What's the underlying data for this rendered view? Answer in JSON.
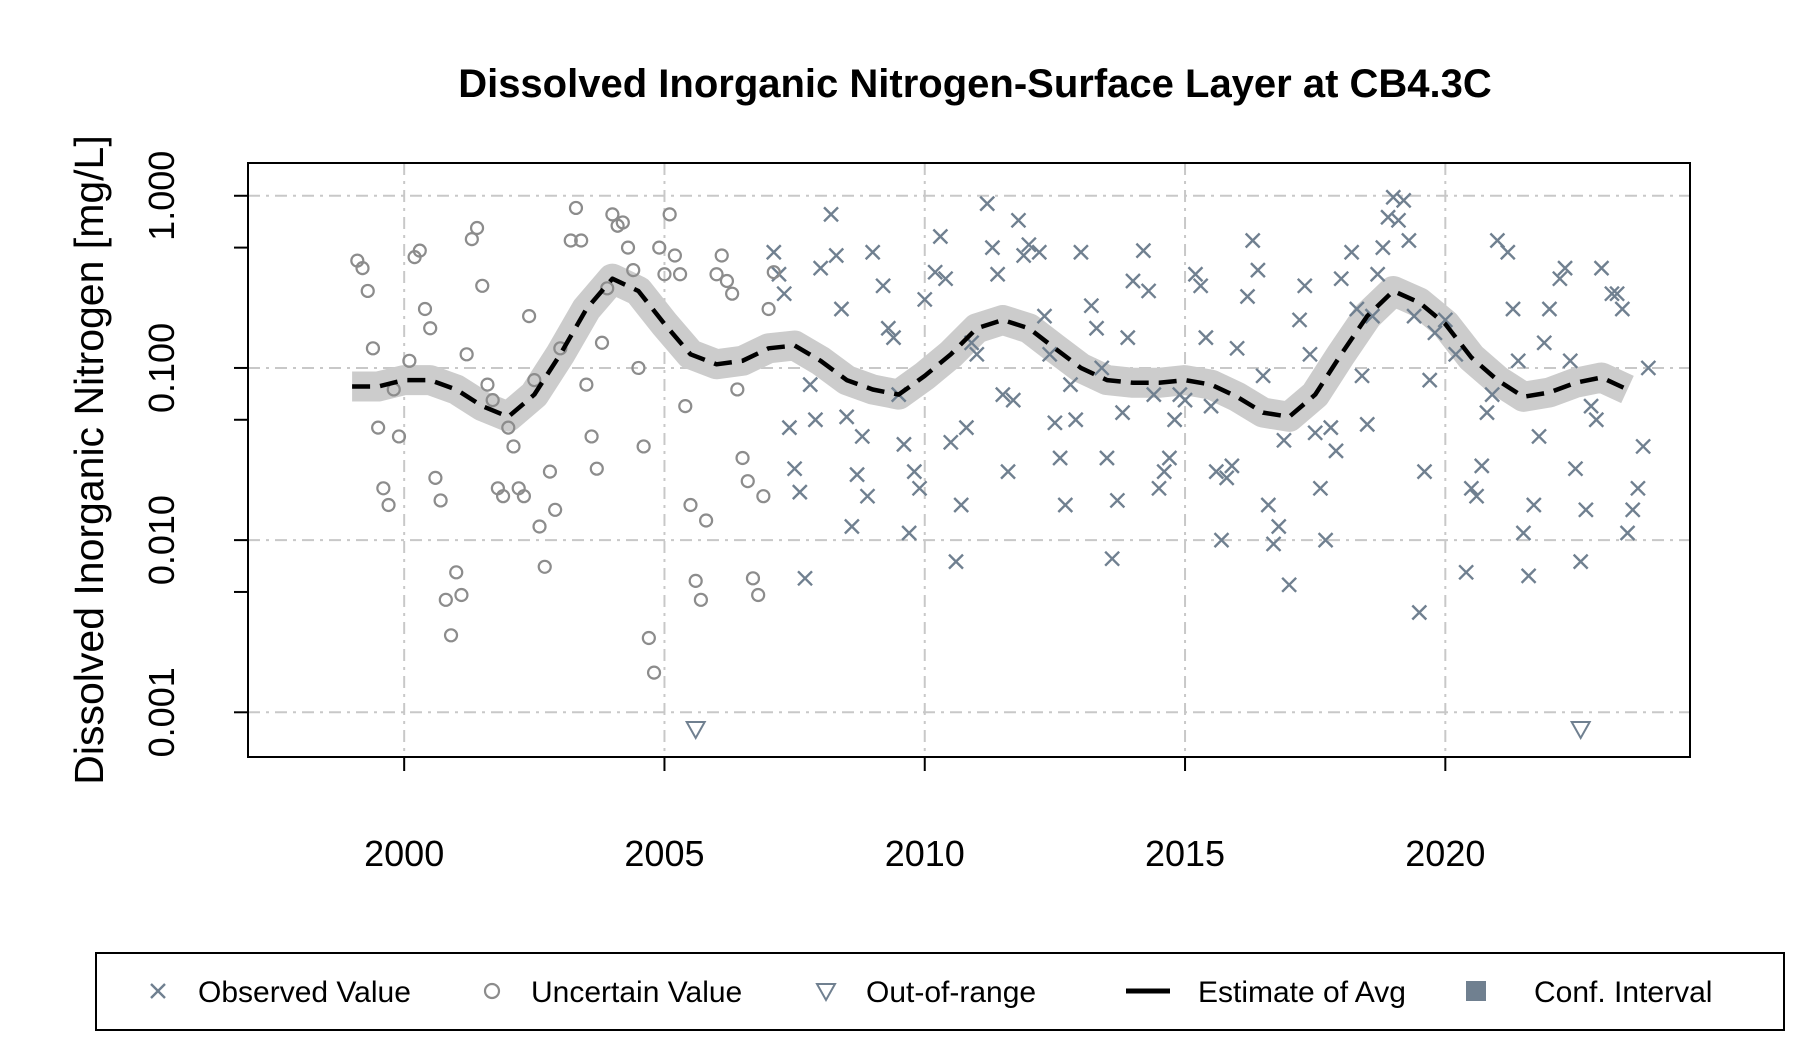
{
  "chart_data": {
    "type": "scatter",
    "title": "Dissolved Inorganic Nitrogen-Surface Layer at CB4.3C",
    "xlabel": "",
    "ylabel": "Dissolved Inorganic Nitrogen [mg/L]",
    "x_range": [
      1997,
      2024.7
    ],
    "y_range": [
      0.00055,
      1.55
    ],
    "y_scale": "log",
    "x_ticks": [
      2000,
      2005,
      2010,
      2015,
      2020
    ],
    "x_tick_labels": [
      "2000",
      "2005",
      "2010",
      "2015",
      "2020"
    ],
    "y_ticks_labeled": [
      0.001,
      0.01,
      0.1,
      1.0
    ],
    "y_tick_labels": [
      "0.001",
      "0.010",
      "0.100",
      "1.000"
    ],
    "y_ticks_minor": [
      0.005,
      0.05,
      0.5
    ],
    "grid": true,
    "legend": {
      "placement": "bottom",
      "items": [
        {
          "label": "Observed Value",
          "symbol": "x",
          "color": "#708090"
        },
        {
          "label": "Uncertain Value",
          "symbol": "circle",
          "color": "#8c8c8c"
        },
        {
          "label": "Out-of-range",
          "symbol": "triangle-down",
          "color": "#708090"
        },
        {
          "label": "Estimate of Avg",
          "symbol": "dashed-line",
          "color": "#000000"
        },
        {
          "label": "Conf. Interval",
          "symbol": "square",
          "color": "#708090"
        }
      ]
    },
    "colors": {
      "observed": "#708090",
      "uncertain": "#8c8c8c",
      "confidence_band": "#cccccc",
      "estimate": "#000000",
      "grid": "#c8c8c8"
    },
    "series": [
      {
        "name": "Estimate of Avg",
        "kind": "line",
        "points": [
          [
            1999.0,
            0.078
          ],
          [
            1999.5,
            0.078
          ],
          [
            2000.0,
            0.085
          ],
          [
            2000.5,
            0.085
          ],
          [
            2001.0,
            0.075
          ],
          [
            2001.5,
            0.06
          ],
          [
            2002.0,
            0.052
          ],
          [
            2002.5,
            0.07
          ],
          [
            2003.0,
            0.12
          ],
          [
            2003.5,
            0.22
          ],
          [
            2004.0,
            0.33
          ],
          [
            2004.5,
            0.28
          ],
          [
            2005.0,
            0.18
          ],
          [
            2005.5,
            0.12
          ],
          [
            2006.0,
            0.105
          ],
          [
            2006.5,
            0.11
          ],
          [
            2007.0,
            0.13
          ],
          [
            2007.5,
            0.135
          ],
          [
            2008.0,
            0.11
          ],
          [
            2008.5,
            0.085
          ],
          [
            2009.0,
            0.075
          ],
          [
            2009.5,
            0.07
          ],
          [
            2010.0,
            0.09
          ],
          [
            2010.5,
            0.12
          ],
          [
            2011.0,
            0.17
          ],
          [
            2011.5,
            0.19
          ],
          [
            2012.0,
            0.17
          ],
          [
            2012.5,
            0.13
          ],
          [
            2013.0,
            0.1
          ],
          [
            2013.5,
            0.085
          ],
          [
            2014.0,
            0.082
          ],
          [
            2014.5,
            0.082
          ],
          [
            2015.0,
            0.085
          ],
          [
            2015.5,
            0.08
          ],
          [
            2016.0,
            0.068
          ],
          [
            2016.5,
            0.055
          ],
          [
            2017.0,
            0.052
          ],
          [
            2017.5,
            0.07
          ],
          [
            2018.0,
            0.12
          ],
          [
            2018.5,
            0.2
          ],
          [
            2019.0,
            0.28
          ],
          [
            2019.5,
            0.24
          ],
          [
            2020.0,
            0.18
          ],
          [
            2020.5,
            0.115
          ],
          [
            2021.0,
            0.085
          ],
          [
            2021.5,
            0.068
          ],
          [
            2022.0,
            0.072
          ],
          [
            2022.5,
            0.082
          ],
          [
            2023.0,
            0.088
          ],
          [
            2023.5,
            0.075
          ]
        ]
      },
      {
        "name": "Observed Value",
        "kind": "x",
        "points": [
          [
            2007.1,
            0.47
          ],
          [
            2007.2,
            0.35
          ],
          [
            2007.3,
            0.27
          ],
          [
            2007.4,
            0.045
          ],
          [
            2007.5,
            0.026
          ],
          [
            2007.6,
            0.019
          ],
          [
            2007.7,
            0.006
          ],
          [
            2007.8,
            0.08
          ],
          [
            2007.9,
            0.05
          ],
          [
            2008.0,
            0.38
          ],
          [
            2008.2,
            0.78
          ],
          [
            2008.3,
            0.45
          ],
          [
            2008.4,
            0.22
          ],
          [
            2008.5,
            0.052
          ],
          [
            2008.6,
            0.012
          ],
          [
            2008.7,
            0.024
          ],
          [
            2008.8,
            0.04
          ],
          [
            2008.9,
            0.018
          ],
          [
            2009.0,
            0.47
          ],
          [
            2009.2,
            0.3
          ],
          [
            2009.3,
            0.17
          ],
          [
            2009.4,
            0.15
          ],
          [
            2009.5,
            0.07
          ],
          [
            2009.6,
            0.036
          ],
          [
            2009.7,
            0.011
          ],
          [
            2009.8,
            0.025
          ],
          [
            2009.9,
            0.02
          ],
          [
            2010.0,
            0.25
          ],
          [
            2010.2,
            0.36
          ],
          [
            2010.3,
            0.58
          ],
          [
            2010.4,
            0.33
          ],
          [
            2010.5,
            0.037
          ],
          [
            2010.6,
            0.0075
          ],
          [
            2010.7,
            0.016
          ],
          [
            2010.8,
            0.045
          ],
          [
            2010.9,
            0.14
          ],
          [
            2011.0,
            0.12
          ],
          [
            2011.2,
            0.9
          ],
          [
            2011.3,
            0.5
          ],
          [
            2011.4,
            0.35
          ],
          [
            2011.5,
            0.07
          ],
          [
            2011.6,
            0.025
          ],
          [
            2011.7,
            0.065
          ],
          [
            2011.8,
            0.72
          ],
          [
            2011.9,
            0.45
          ],
          [
            2012.0,
            0.52
          ],
          [
            2012.2,
            0.47
          ],
          [
            2012.3,
            0.2
          ],
          [
            2012.4,
            0.12
          ],
          [
            2012.5,
            0.048
          ],
          [
            2012.6,
            0.03
          ],
          [
            2012.7,
            0.016
          ],
          [
            2012.8,
            0.08
          ],
          [
            2012.9,
            0.05
          ],
          [
            2013.0,
            0.47
          ],
          [
            2013.2,
            0.23
          ],
          [
            2013.3,
            0.17
          ],
          [
            2013.4,
            0.1
          ],
          [
            2013.5,
            0.03
          ],
          [
            2013.6,
            0.0078
          ],
          [
            2013.7,
            0.017
          ],
          [
            2013.8,
            0.055
          ],
          [
            2013.9,
            0.15
          ],
          [
            2014.0,
            0.32
          ],
          [
            2014.2,
            0.48
          ],
          [
            2014.3,
            0.28
          ],
          [
            2014.4,
            0.07
          ],
          [
            2014.5,
            0.02
          ],
          [
            2014.6,
            0.025
          ],
          [
            2014.7,
            0.03
          ],
          [
            2014.8,
            0.05
          ],
          [
            2014.9,
            0.07
          ],
          [
            2015.0,
            0.065
          ],
          [
            2015.2,
            0.35
          ],
          [
            2015.3,
            0.3
          ],
          [
            2015.4,
            0.15
          ],
          [
            2015.5,
            0.06
          ],
          [
            2015.6,
            0.025
          ],
          [
            2015.7,
            0.01
          ],
          [
            2015.8,
            0.023
          ],
          [
            2015.9,
            0.027
          ],
          [
            2016.0,
            0.13
          ],
          [
            2016.2,
            0.26
          ],
          [
            2016.3,
            0.55
          ],
          [
            2016.4,
            0.37
          ],
          [
            2016.5,
            0.09
          ],
          [
            2016.6,
            0.016
          ],
          [
            2016.7,
            0.0095
          ],
          [
            2016.8,
            0.012
          ],
          [
            2016.9,
            0.038
          ],
          [
            2017.0,
            0.0055
          ],
          [
            2017.2,
            0.19
          ],
          [
            2017.3,
            0.3
          ],
          [
            2017.4,
            0.12
          ],
          [
            2017.5,
            0.042
          ],
          [
            2017.6,
            0.02
          ],
          [
            2017.7,
            0.01
          ],
          [
            2017.8,
            0.045
          ],
          [
            2017.9,
            0.033
          ],
          [
            2018.0,
            0.33
          ],
          [
            2018.2,
            0.47
          ],
          [
            2018.3,
            0.22
          ],
          [
            2018.4,
            0.09
          ],
          [
            2018.5,
            0.047
          ],
          [
            2018.6,
            0.2
          ],
          [
            2018.7,
            0.35
          ],
          [
            2018.8,
            0.5
          ],
          [
            2018.9,
            0.75
          ],
          [
            2019.0,
            0.98
          ],
          [
            2019.1,
            0.72
          ],
          [
            2019.2,
            0.94
          ],
          [
            2019.3,
            0.55
          ],
          [
            2019.4,
            0.2
          ],
          [
            2019.5,
            0.0038
          ],
          [
            2019.6,
            0.025
          ],
          [
            2019.7,
            0.085
          ],
          [
            2019.8,
            0.16
          ],
          [
            2020.0,
            0.19
          ],
          [
            2020.2,
            0.12
          ],
          [
            2020.4,
            0.0065
          ],
          [
            2020.5,
            0.02
          ],
          [
            2020.6,
            0.018
          ],
          [
            2020.7,
            0.027
          ],
          [
            2020.8,
            0.055
          ],
          [
            2020.9,
            0.07
          ],
          [
            2021.0,
            0.55
          ],
          [
            2021.2,
            0.47
          ],
          [
            2021.3,
            0.22
          ],
          [
            2021.4,
            0.11
          ],
          [
            2021.5,
            0.011
          ],
          [
            2021.6,
            0.0062
          ],
          [
            2021.7,
            0.016
          ],
          [
            2021.8,
            0.04
          ],
          [
            2021.9,
            0.14
          ],
          [
            2022.0,
            0.22
          ],
          [
            2022.2,
            0.33
          ],
          [
            2022.3,
            0.38
          ],
          [
            2022.4,
            0.11
          ],
          [
            2022.5,
            0.026
          ],
          [
            2022.6,
            0.0075
          ],
          [
            2022.7,
            0.015
          ],
          [
            2022.8,
            0.06
          ],
          [
            2022.9,
            0.05
          ],
          [
            2023.0,
            0.38
          ],
          [
            2023.2,
            0.27
          ],
          [
            2023.3,
            0.27
          ],
          [
            2023.4,
            0.22
          ],
          [
            2023.5,
            0.011
          ],
          [
            2023.6,
            0.015
          ],
          [
            2023.7,
            0.02
          ],
          [
            2023.8,
            0.035
          ],
          [
            2023.9,
            0.1
          ]
        ]
      },
      {
        "name": "Uncertain Value",
        "kind": "circle",
        "points": [
          [
            1999.1,
            0.42
          ],
          [
            1999.2,
            0.38
          ],
          [
            1999.3,
            0.28
          ],
          [
            1999.4,
            0.13
          ],
          [
            1999.5,
            0.045
          ],
          [
            1999.6,
            0.02
          ],
          [
            1999.7,
            0.016
          ],
          [
            1999.8,
            0.075
          ],
          [
            1999.9,
            0.04
          ],
          [
            2000.1,
            0.11
          ],
          [
            2000.2,
            0.44
          ],
          [
            2000.3,
            0.48
          ],
          [
            2000.4,
            0.22
          ],
          [
            2000.5,
            0.17
          ],
          [
            2000.6,
            0.023
          ],
          [
            2000.7,
            0.017
          ],
          [
            2000.8,
            0.0045
          ],
          [
            2000.9,
            0.0028
          ],
          [
            2001.0,
            0.0065
          ],
          [
            2001.1,
            0.0048
          ],
          [
            2001.2,
            0.12
          ],
          [
            2001.3,
            0.56
          ],
          [
            2001.4,
            0.65
          ],
          [
            2001.5,
            0.3
          ],
          [
            2001.6,
            0.08
          ],
          [
            2001.7,
            0.065
          ],
          [
            2001.8,
            0.02
          ],
          [
            2001.9,
            0.018
          ],
          [
            2002.0,
            0.045
          ],
          [
            2002.1,
            0.035
          ],
          [
            2002.2,
            0.02
          ],
          [
            2002.3,
            0.018
          ],
          [
            2002.4,
            0.2
          ],
          [
            2002.5,
            0.085
          ],
          [
            2002.6,
            0.012
          ],
          [
            2002.7,
            0.007
          ],
          [
            2002.8,
            0.025
          ],
          [
            2002.9,
            0.015
          ],
          [
            2003.0,
            0.13
          ],
          [
            2003.2,
            0.55
          ],
          [
            2003.3,
            0.85
          ],
          [
            2003.4,
            0.55
          ],
          [
            2003.5,
            0.08
          ],
          [
            2003.6,
            0.04
          ],
          [
            2003.7,
            0.026
          ],
          [
            2003.8,
            0.14
          ],
          [
            2003.9,
            0.29
          ],
          [
            2004.0,
            0.78
          ],
          [
            2004.1,
            0.67
          ],
          [
            2004.2,
            0.7
          ],
          [
            2004.3,
            0.5
          ],
          [
            2004.4,
            0.37
          ],
          [
            2004.5,
            0.1
          ],
          [
            2004.6,
            0.035
          ],
          [
            2004.7,
            0.0027
          ],
          [
            2004.8,
            0.0017
          ],
          [
            2004.9,
            0.5
          ],
          [
            2005.0,
            0.35
          ],
          [
            2005.1,
            0.78
          ],
          [
            2005.2,
            0.45
          ],
          [
            2005.3,
            0.35
          ],
          [
            2005.4,
            0.06
          ],
          [
            2005.5,
            0.016
          ],
          [
            2005.6,
            0.0058
          ],
          [
            2005.7,
            0.0045
          ],
          [
            2005.8,
            0.013
          ],
          [
            2006.0,
            0.35
          ],
          [
            2006.1,
            0.45
          ],
          [
            2006.2,
            0.32
          ],
          [
            2006.3,
            0.27
          ],
          [
            2006.4,
            0.075
          ],
          [
            2006.5,
            0.03
          ],
          [
            2006.6,
            0.022
          ],
          [
            2006.7,
            0.006
          ],
          [
            2006.8,
            0.0048
          ],
          [
            2006.9,
            0.018
          ],
          [
            2007.0,
            0.22
          ],
          [
            2007.1,
            0.36
          ]
        ]
      },
      {
        "name": "Out-of-range",
        "kind": "triangle-down",
        "points": [
          [
            2005.6,
            0.0008
          ],
          [
            2022.6,
            0.0008
          ]
        ]
      }
    ]
  }
}
